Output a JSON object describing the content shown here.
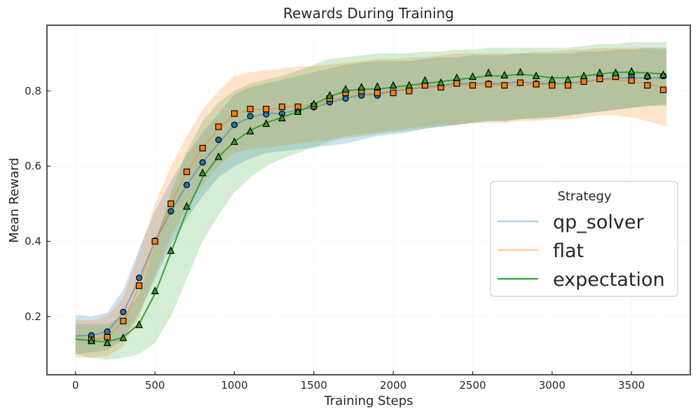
{
  "chart_data": {
    "type": "line",
    "title": "Rewards During Training",
    "xlabel": "Training Steps",
    "ylabel": "Mean Reward",
    "xlim": [
      -180,
      3870
    ],
    "ylim": [
      0.045,
      0.975
    ],
    "xticks": [
      0,
      500,
      1000,
      1500,
      2000,
      2500,
      3000,
      3500
    ],
    "xtick_labels": [
      "0",
      "500",
      "1000",
      "1500",
      "2000",
      "2500",
      "3000",
      "3500"
    ],
    "yticks": [
      0.2,
      0.4,
      0.6,
      0.8
    ],
    "ytick_labels": [
      "0.2",
      "0.4",
      "0.6",
      "0.8"
    ],
    "grid": true,
    "legend": {
      "title": "Strategy",
      "placement": "center-right",
      "entries": [
        "qp_solver",
        "flat",
        "expectation"
      ]
    },
    "series": [
      {
        "name": "qp_solver",
        "color": "#1f77b4",
        "marker": "circle",
        "line": {
          "x": [
            0,
            100,
            200,
            300,
            400,
            500,
            600,
            700,
            800,
            900,
            1000,
            1100,
            1200,
            1300,
            1400,
            1500,
            1600,
            1700,
            1800,
            1900,
            2000,
            2100,
            2200,
            2300,
            2400,
            2500,
            2600,
            2700,
            2800,
            2900,
            3000,
            3100,
            3200,
            3300,
            3400,
            3500,
            3600,
            3720
          ],
          "y": [
            0.148,
            0.15,
            0.16,
            0.21,
            0.3,
            0.4,
            0.48,
            0.55,
            0.61,
            0.66,
            0.71,
            0.73,
            0.74,
            0.74,
            0.75,
            0.755,
            0.77,
            0.78,
            0.79,
            0.79,
            0.8,
            0.805,
            0.81,
            0.815,
            0.82,
            0.82,
            0.82,
            0.82,
            0.825,
            0.82,
            0.82,
            0.82,
            0.825,
            0.83,
            0.835,
            0.835,
            0.835,
            0.835
          ],
          "lower": [
            0.1,
            0.105,
            0.11,
            0.14,
            0.21,
            0.3,
            0.39,
            0.46,
            0.52,
            0.57,
            0.6,
            0.62,
            0.635,
            0.64,
            0.645,
            0.65,
            0.655,
            0.66,
            0.67,
            0.68,
            0.685,
            0.69,
            0.7,
            0.705,
            0.71,
            0.715,
            0.72,
            0.72,
            0.725,
            0.725,
            0.73,
            0.735,
            0.74,
            0.745,
            0.75,
            0.755,
            0.76,
            0.765
          ],
          "upper": [
            0.205,
            0.2,
            0.21,
            0.27,
            0.38,
            0.48,
            0.56,
            0.63,
            0.69,
            0.74,
            0.79,
            0.81,
            0.82,
            0.83,
            0.84,
            0.85,
            0.86,
            0.87,
            0.875,
            0.88,
            0.88,
            0.88,
            0.885,
            0.89,
            0.89,
            0.895,
            0.895,
            0.895,
            0.9,
            0.9,
            0.9,
            0.9,
            0.905,
            0.905,
            0.91,
            0.91,
            0.915,
            0.915
          ]
        },
        "markers": {
          "x": [
            100,
            200,
            300,
            400,
            500,
            600,
            700,
            800,
            900,
            1000,
            1100,
            1200,
            1300,
            1400,
            1500,
            1600,
            1700,
            1800,
            1900,
            2000,
            2100,
            2200,
            2300,
            2400,
            2500,
            2600,
            2700,
            2800,
            2900,
            3000,
            3100,
            3200,
            3300,
            3400,
            3500,
            3600,
            3700
          ],
          "y": [
            0.15,
            0.16,
            0.212,
            0.303,
            0.402,
            0.48,
            0.55,
            0.61,
            0.67,
            0.71,
            0.733,
            0.738,
            0.74,
            0.745,
            0.757,
            0.77,
            0.78,
            0.788,
            0.788,
            0.795,
            0.8,
            0.815,
            0.812,
            0.822,
            0.815,
            0.82,
            0.815,
            0.822,
            0.82,
            0.818,
            0.818,
            0.825,
            0.832,
            0.838,
            0.838,
            0.838,
            0.84
          ]
        }
      },
      {
        "name": "flat",
        "color": "#ff7f0e",
        "marker": "square",
        "line": {
          "x": [
            0,
            100,
            200,
            300,
            400,
            500,
            600,
            700,
            800,
            900,
            1000,
            1100,
            1200,
            1300,
            1400,
            1500,
            1600,
            1700,
            1800,
            1900,
            2000,
            2100,
            2200,
            2300,
            2400,
            2500,
            2600,
            2700,
            2800,
            2900,
            3000,
            3100,
            3200,
            3300,
            3400,
            3500,
            3600,
            3720
          ],
          "y": [
            0.14,
            0.138,
            0.145,
            0.185,
            0.28,
            0.4,
            0.5,
            0.585,
            0.65,
            0.7,
            0.74,
            0.75,
            0.752,
            0.755,
            0.76,
            0.765,
            0.775,
            0.785,
            0.79,
            0.795,
            0.8,
            0.805,
            0.81,
            0.81,
            0.815,
            0.815,
            0.815,
            0.815,
            0.815,
            0.818,
            0.818,
            0.82,
            0.825,
            0.83,
            0.83,
            0.825,
            0.82,
            0.805
          ],
          "lower": [
            0.09,
            0.09,
            0.095,
            0.12,
            0.2,
            0.31,
            0.41,
            0.49,
            0.55,
            0.6,
            0.635,
            0.645,
            0.65,
            0.655,
            0.66,
            0.665,
            0.67,
            0.68,
            0.685,
            0.69,
            0.695,
            0.7,
            0.705,
            0.71,
            0.71,
            0.715,
            0.715,
            0.715,
            0.72,
            0.72,
            0.725,
            0.725,
            0.73,
            0.735,
            0.735,
            0.73,
            0.72,
            0.705
          ],
          "upper": [
            0.19,
            0.19,
            0.2,
            0.25,
            0.37,
            0.5,
            0.6,
            0.68,
            0.75,
            0.8,
            0.84,
            0.85,
            0.855,
            0.86,
            0.865,
            0.865,
            0.87,
            0.875,
            0.88,
            0.885,
            0.885,
            0.89,
            0.89,
            0.895,
            0.9,
            0.9,
            0.9,
            0.9,
            0.9,
            0.905,
            0.905,
            0.91,
            0.91,
            0.915,
            0.915,
            0.915,
            0.915,
            0.91
          ]
        },
        "markers": {
          "x": [
            100,
            200,
            300,
            400,
            500,
            600,
            700,
            800,
            900,
            1000,
            1100,
            1200,
            1300,
            1400,
            1500,
            1600,
            1700,
            1800,
            1900,
            2000,
            2100,
            2200,
            2300,
            2400,
            2500,
            2600,
            2700,
            2800,
            2900,
            3000,
            3100,
            3200,
            3300,
            3400,
            3500,
            3600,
            3700
          ],
          "y": [
            0.138,
            0.145,
            0.188,
            0.282,
            0.4,
            0.5,
            0.585,
            0.648,
            0.705,
            0.74,
            0.752,
            0.752,
            0.758,
            0.758,
            0.76,
            0.78,
            0.795,
            0.8,
            0.795,
            0.795,
            0.8,
            0.815,
            0.81,
            0.82,
            0.815,
            0.818,
            0.815,
            0.822,
            0.818,
            0.815,
            0.815,
            0.825,
            0.832,
            0.838,
            0.828,
            0.815,
            0.803
          ]
        }
      },
      {
        "name": "expectation",
        "color": "#2ca02c",
        "marker": "triangle",
        "line": {
          "x": [
            0,
            100,
            200,
            300,
            400,
            500,
            600,
            700,
            800,
            900,
            1000,
            1100,
            1200,
            1300,
            1400,
            1500,
            1600,
            1700,
            1800,
            1900,
            2000,
            2100,
            2200,
            2300,
            2400,
            2500,
            2600,
            2700,
            2800,
            2900,
            3000,
            3100,
            3200,
            3300,
            3400,
            3500,
            3600,
            3720
          ],
          "y": [
            0.14,
            0.135,
            0.132,
            0.145,
            0.18,
            0.26,
            0.37,
            0.48,
            0.57,
            0.625,
            0.665,
            0.695,
            0.715,
            0.73,
            0.745,
            0.765,
            0.785,
            0.8,
            0.805,
            0.805,
            0.81,
            0.815,
            0.82,
            0.825,
            0.83,
            0.835,
            0.84,
            0.84,
            0.845,
            0.84,
            0.835,
            0.835,
            0.84,
            0.845,
            0.85,
            0.85,
            0.848,
            0.845
          ],
          "lower": [
            0.1,
            0.09,
            0.085,
            0.09,
            0.1,
            0.13,
            0.2,
            0.3,
            0.4,
            0.47,
            0.53,
            0.57,
            0.6,
            0.62,
            0.635,
            0.65,
            0.665,
            0.675,
            0.68,
            0.685,
            0.69,
            0.695,
            0.7,
            0.705,
            0.71,
            0.715,
            0.72,
            0.72,
            0.725,
            0.73,
            0.73,
            0.735,
            0.74,
            0.745,
            0.75,
            0.755,
            0.76,
            0.76
          ],
          "upper": [
            0.18,
            0.18,
            0.18,
            0.2,
            0.26,
            0.39,
            0.53,
            0.64,
            0.72,
            0.77,
            0.8,
            0.82,
            0.83,
            0.84,
            0.855,
            0.87,
            0.885,
            0.89,
            0.895,
            0.9,
            0.9,
            0.9,
            0.905,
            0.905,
            0.91,
            0.91,
            0.915,
            0.915,
            0.915,
            0.915,
            0.915,
            0.915,
            0.92,
            0.925,
            0.925,
            0.93,
            0.93,
            0.93
          ]
        },
        "markers": {
          "x": [
            100,
            200,
            300,
            400,
            500,
            600,
            700,
            800,
            900,
            1000,
            1100,
            1200,
            1300,
            1400,
            1500,
            1600,
            1700,
            1800,
            1900,
            2000,
            2100,
            2200,
            2300,
            2400,
            2500,
            2600,
            2700,
            2800,
            2900,
            3000,
            3100,
            3200,
            3300,
            3400,
            3500,
            3600,
            3700
          ],
          "y": [
            0.135,
            0.13,
            0.143,
            0.178,
            0.268,
            0.375,
            0.493,
            0.582,
            0.625,
            0.665,
            0.693,
            0.713,
            0.728,
            0.745,
            0.765,
            0.788,
            0.805,
            0.81,
            0.812,
            0.815,
            0.815,
            0.828,
            0.822,
            0.835,
            0.838,
            0.848,
            0.842,
            0.85,
            0.84,
            0.83,
            0.83,
            0.84,
            0.848,
            0.848,
            0.852,
            0.84,
            0.843
          ]
        }
      }
    ]
  }
}
